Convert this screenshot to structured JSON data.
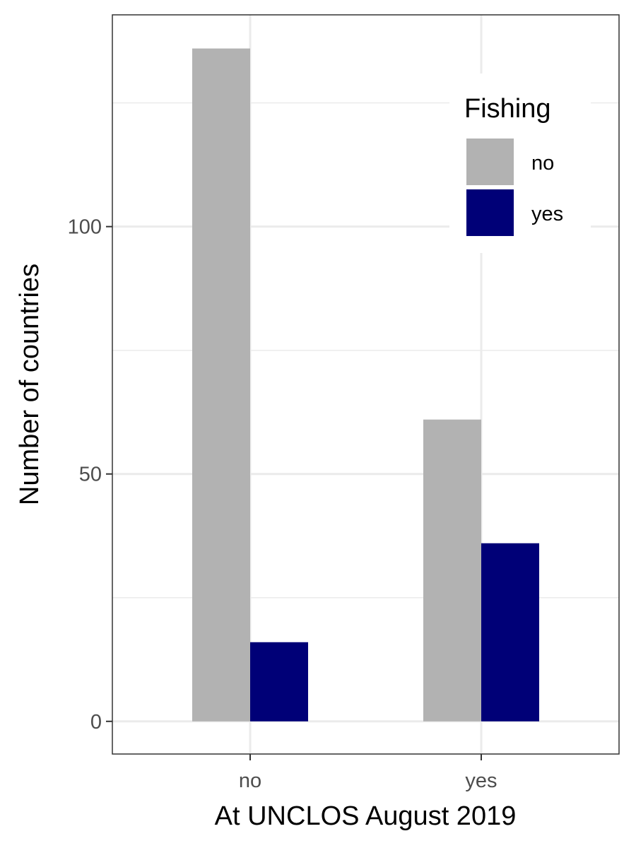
{
  "chart_data": {
    "type": "bar",
    "xlabel": "At UNCLOS August 2019",
    "ylabel": "Number of countries",
    "categories": [
      "no",
      "yes"
    ],
    "series": [
      {
        "name": "no",
        "values": [
          136,
          61
        ]
      },
      {
        "name": "yes",
        "values": [
          16,
          36
        ]
      }
    ],
    "ylim": [
      -6.6,
      142.8
    ],
    "yticks": [
      0,
      50,
      100
    ],
    "ytick_labels": [
      "0",
      "50",
      "100"
    ],
    "grid": true,
    "legend": {
      "title": "Fishing",
      "placement": "top-right",
      "entries": [
        "no",
        "yes"
      ]
    },
    "colors": {
      "no": "#b2b2b2",
      "yes": "#000077"
    }
  }
}
